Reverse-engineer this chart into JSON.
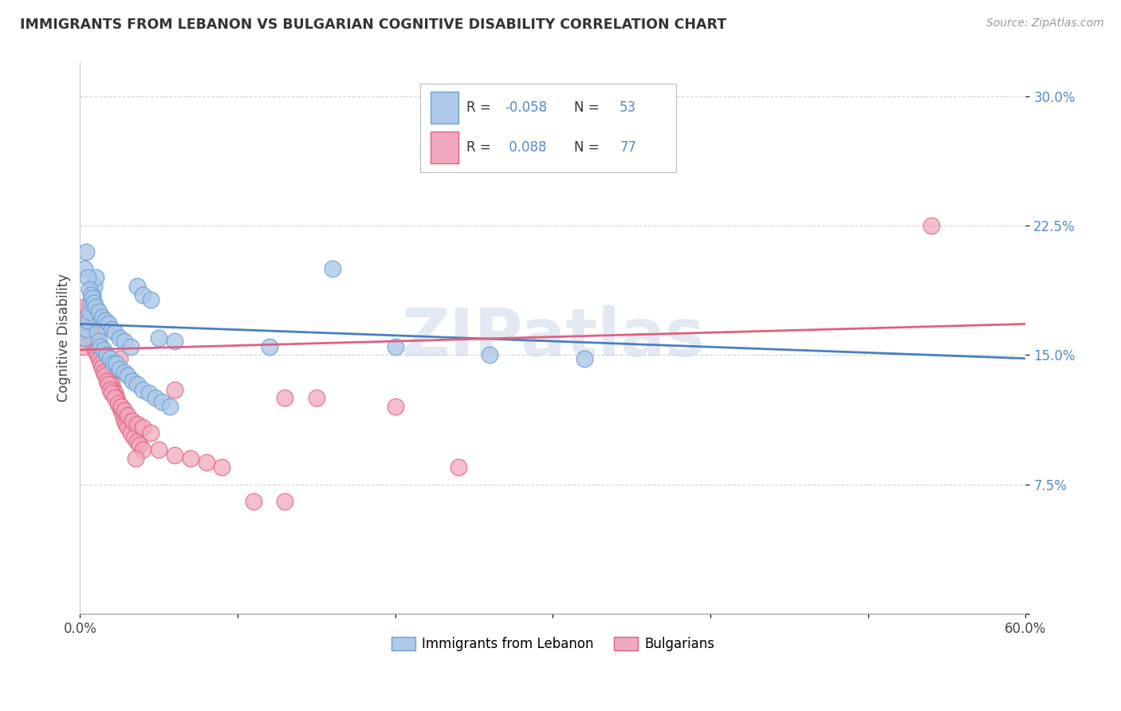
{
  "title": "IMMIGRANTS FROM LEBANON VS BULGARIAN COGNITIVE DISABILITY CORRELATION CHART",
  "source": "Source: ZipAtlas.com",
  "ylabel": "Cognitive Disability",
  "xlim": [
    0.0,
    0.6
  ],
  "ylim": [
    0.0,
    0.32
  ],
  "color_blue": "#adc8e8",
  "color_pink": "#f2a8bc",
  "color_blue_edge": "#6aa0d4",
  "color_pink_edge": "#e06080",
  "color_blue_line": "#4a7fc0",
  "color_pink_line": "#e06080",
  "watermark": "ZIPatlas",
  "blue_scatter_x": [
    0.003,
    0.004,
    0.005,
    0.006,
    0.007,
    0.008,
    0.009,
    0.01,
    0.011,
    0.012,
    0.013,
    0.015,
    0.017,
    0.019,
    0.021,
    0.023,
    0.025,
    0.028,
    0.03,
    0.033,
    0.036,
    0.04,
    0.044,
    0.048,
    0.052,
    0.057,
    0.003,
    0.004,
    0.005,
    0.006,
    0.007,
    0.008,
    0.009,
    0.01,
    0.012,
    0.014,
    0.016,
    0.018,
    0.02,
    0.022,
    0.025,
    0.028,
    0.032,
    0.036,
    0.04,
    0.045,
    0.05,
    0.06,
    0.12,
    0.16,
    0.2,
    0.26,
    0.32
  ],
  "blue_scatter_y": [
    0.16,
    0.165,
    0.17,
    0.175,
    0.18,
    0.185,
    0.19,
    0.195,
    0.163,
    0.158,
    0.155,
    0.153,
    0.15,
    0.148,
    0.145,
    0.145,
    0.142,
    0.14,
    0.138,
    0.135,
    0.133,
    0.13,
    0.128,
    0.125,
    0.123,
    0.12,
    0.2,
    0.21,
    0.195,
    0.188,
    0.185,
    0.183,
    0.18,
    0.178,
    0.175,
    0.172,
    0.17,
    0.168,
    0.165,
    0.163,
    0.16,
    0.158,
    0.155,
    0.19,
    0.185,
    0.182,
    0.16,
    0.158,
    0.155,
    0.2,
    0.155,
    0.15,
    0.148
  ],
  "pink_scatter_x": [
    0.002,
    0.003,
    0.004,
    0.005,
    0.006,
    0.007,
    0.008,
    0.009,
    0.01,
    0.011,
    0.012,
    0.013,
    0.014,
    0.015,
    0.016,
    0.017,
    0.018,
    0.019,
    0.02,
    0.021,
    0.022,
    0.023,
    0.024,
    0.025,
    0.026,
    0.027,
    0.028,
    0.029,
    0.03,
    0.032,
    0.034,
    0.036,
    0.038,
    0.04,
    0.002,
    0.003,
    0.004,
    0.005,
    0.006,
    0.007,
    0.008,
    0.009,
    0.01,
    0.011,
    0.012,
    0.013,
    0.014,
    0.015,
    0.016,
    0.017,
    0.018,
    0.019,
    0.02,
    0.022,
    0.024,
    0.026,
    0.028,
    0.03,
    0.033,
    0.036,
    0.04,
    0.045,
    0.05,
    0.06,
    0.07,
    0.08,
    0.09,
    0.11,
    0.13,
    0.15,
    0.025,
    0.035,
    0.13,
    0.2,
    0.24,
    0.54,
    0.06
  ],
  "pink_scatter_y": [
    0.155,
    0.16,
    0.165,
    0.17,
    0.168,
    0.165,
    0.162,
    0.16,
    0.158,
    0.155,
    0.152,
    0.15,
    0.148,
    0.145,
    0.143,
    0.14,
    0.138,
    0.135,
    0.133,
    0.13,
    0.128,
    0.125,
    0.122,
    0.12,
    0.118,
    0.115,
    0.112,
    0.11,
    0.108,
    0.105,
    0.102,
    0.1,
    0.098,
    0.095,
    0.175,
    0.178,
    0.172,
    0.168,
    0.165,
    0.162,
    0.158,
    0.155,
    0.152,
    0.15,
    0.148,
    0.145,
    0.143,
    0.14,
    0.138,
    0.135,
    0.133,
    0.13,
    0.128,
    0.125,
    0.122,
    0.12,
    0.118,
    0.115,
    0.112,
    0.11,
    0.108,
    0.105,
    0.095,
    0.092,
    0.09,
    0.088,
    0.085,
    0.065,
    0.065,
    0.125,
    0.148,
    0.09,
    0.125,
    0.12,
    0.085,
    0.225,
    0.13
  ],
  "blue_line_x": [
    0.0,
    0.6
  ],
  "blue_line_y": [
    0.168,
    0.148
  ],
  "pink_line_x": [
    0.0,
    0.6
  ],
  "pink_line_y": [
    0.153,
    0.168
  ]
}
